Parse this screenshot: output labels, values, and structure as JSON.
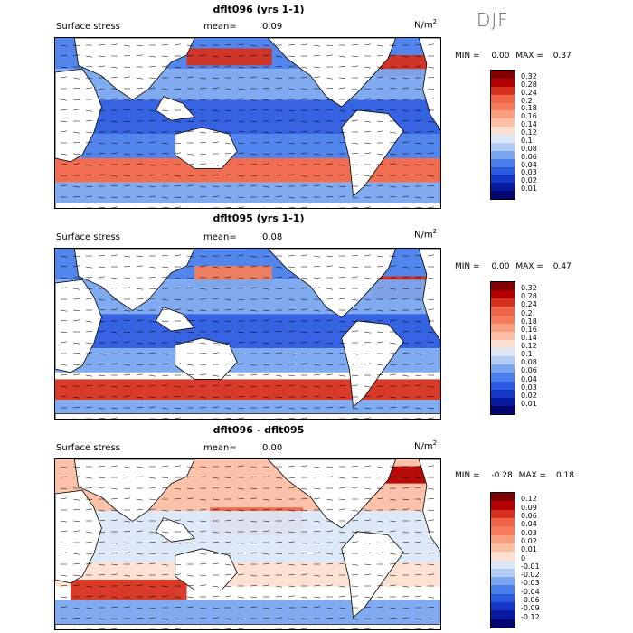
{
  "season": "DJF",
  "panels": [
    {
      "title": "dflt096 (yrs 1-1)",
      "variable": "Surface stress",
      "mean_label": "mean=",
      "mean_value": "0.09",
      "units": "N/m",
      "units_sup": "2",
      "min_label": "MIN =",
      "min_value": "0.00",
      "max_label": "MAX =",
      "max_value": "0.37",
      "colorbar": {
        "labels": [
          "0.32",
          "0.28",
          "0.24",
          "0.2",
          "0.18",
          "0.16",
          "0.14",
          "0.12",
          "0.1",
          "0.08",
          "0.06",
          "0.04",
          "0.03",
          "0.02",
          "0.01"
        ],
        "colors": [
          "#7f0000",
          "#b30000",
          "#d7301f",
          "#ef6548",
          "#f47c5a",
          "#f99f80",
          "#fcbfa4",
          "#fde0d2",
          "#dce8f8",
          "#b3ccf5",
          "#7aa6f0",
          "#4a80ec",
          "#2a5be0",
          "#1437c8",
          "#0a1aa0",
          "#02066e"
        ]
      }
    },
    {
      "title": "dflt095 (yrs 1-1)",
      "variable": "Surface stress",
      "mean_label": "mean=",
      "mean_value": "0.08",
      "units": "N/m",
      "units_sup": "2",
      "min_label": "MIN =",
      "min_value": "0.00",
      "max_label": "MAX =",
      "max_value": "0.47",
      "colorbar": {
        "labels": [
          "0.32",
          "0.28",
          "0.24",
          "0.2",
          "0.18",
          "0.16",
          "0.14",
          "0.12",
          "0.1",
          "0.08",
          "0.06",
          "0.04",
          "0.03",
          "0.02",
          "0.01"
        ],
        "colors": [
          "#7f0000",
          "#b30000",
          "#d7301f",
          "#ef6548",
          "#f47c5a",
          "#f99f80",
          "#fcbfa4",
          "#fde0d2",
          "#dce8f8",
          "#b3ccf5",
          "#7aa6f0",
          "#4a80ec",
          "#2a5be0",
          "#1437c8",
          "#0a1aa0",
          "#02066e"
        ]
      }
    },
    {
      "title": "dflt096 - dflt095",
      "variable": "Surface stress",
      "mean_label": "mean=",
      "mean_value": "0.00",
      "units": "N/m",
      "units_sup": "2",
      "min_label": "MIN =",
      "min_value": "-0.28",
      "max_label": "MAX =",
      "max_value": "0.18",
      "colorbar": {
        "labels": [
          "0.12",
          "0.09",
          "0.06",
          "0.04",
          "0.03",
          "0.02",
          "0.01",
          "0",
          "-0.01",
          "-0.02",
          "-0.03",
          "-0.04",
          "-0.06",
          "-0.09",
          "-0.12"
        ],
        "colors": [
          "#7f0000",
          "#b30000",
          "#d7301f",
          "#ef6548",
          "#f47c5a",
          "#f99f80",
          "#fcbfa4",
          "#fde0d2",
          "#dce8f8",
          "#b3ccf5",
          "#7aa6f0",
          "#4a80ec",
          "#2a5be0",
          "#1437c8",
          "#0a1aa0",
          "#02066e"
        ]
      }
    }
  ]
}
